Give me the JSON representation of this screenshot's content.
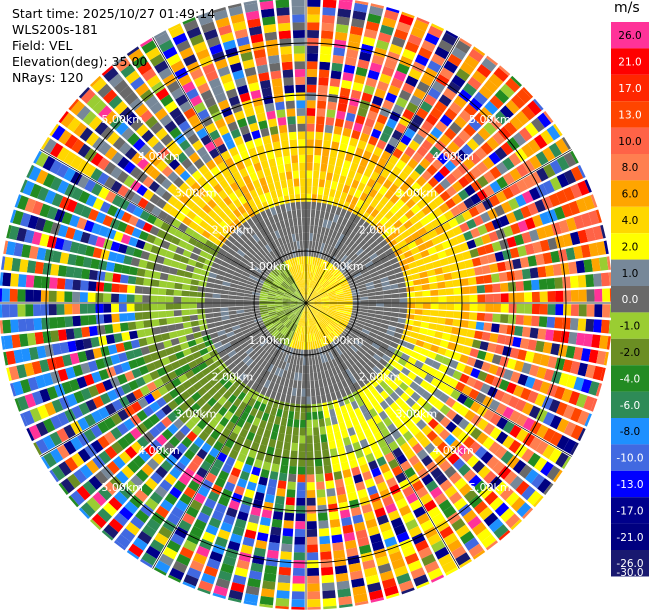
{
  "header": {
    "start_time": "Start time: 2025/10/27 01:49:14",
    "instrument": "WLS200s-181",
    "field": "Field: VEL",
    "elevation": "Elevation(deg): 35.00",
    "nrays": "NRays: 120"
  },
  "chart_data": {
    "type": "heatmap",
    "projection": "polar-ppi",
    "field": "VEL",
    "unit": "m/s",
    "nrays": 120,
    "max_range_km": 5.9,
    "range_rings": [
      {
        "range_km": 1,
        "label": "1.00km"
      },
      {
        "range_km": 2,
        "label": "2.00km"
      },
      {
        "range_km": 3,
        "label": "3.00km"
      },
      {
        "range_km": 4,
        "label": "4.00km"
      },
      {
        "range_km": 5,
        "label": "5.00km"
      }
    ],
    "colorbar": {
      "ticks": [
        {
          "value": 26.0,
          "label": "26.0",
          "color": "#ff3399"
        },
        {
          "value": 21.0,
          "label": "21.0",
          "color": "#ff0000"
        },
        {
          "value": 17.0,
          "label": "17.0",
          "color": "#ff2600"
        },
        {
          "value": 13.0,
          "label": "13.0",
          "color": "#ff4500"
        },
        {
          "value": 10.0,
          "label": "10.0",
          "color": "#ff6347"
        },
        {
          "value": 8.0,
          "label": "8.0",
          "color": "#ff7f50"
        },
        {
          "value": 6.0,
          "label": "6.0",
          "color": "#ffa500"
        },
        {
          "value": 4.0,
          "label": "4.0",
          "color": "#ffd700"
        },
        {
          "value": 2.0,
          "label": "2.0",
          "color": "#ffff00"
        },
        {
          "value": 1.0,
          "label": "1.0",
          "color": "#778899"
        },
        {
          "value": 0.0,
          "label": "0.0",
          "color": "#696969"
        },
        {
          "value": -1.0,
          "label": "-1.0",
          "color": "#9acd32"
        },
        {
          "value": -2.0,
          "label": "-2.0",
          "color": "#6b8e23"
        },
        {
          "value": -4.0,
          "label": "-4.0",
          "color": "#228b22"
        },
        {
          "value": -6.0,
          "label": "-6.0",
          "color": "#2e8b57"
        },
        {
          "value": -8.0,
          "label": "-8.0",
          "color": "#1e90ff"
        },
        {
          "value": -10.0,
          "label": "-10.0",
          "color": "#4169e1"
        },
        {
          "value": -13.0,
          "label": "-13.0",
          "color": "#0000ff"
        },
        {
          "value": -17.0,
          "label": "-17.0",
          "color": "#00008b"
        },
        {
          "value": -21.0,
          "label": "-21.0",
          "color": "#000080"
        },
        {
          "value": -26.0,
          "label": "-26.0",
          "color": "#191970"
        },
        {
          "value": -30.0,
          "label": "-30.0",
          "color": "#191970"
        }
      ]
    },
    "pattern": {
      "inner_core": "mixed yellow (positive) on east half and olive/green (negative) on west half within ~0.8 km",
      "ring_1_to_2km": "grey near-zero velocities",
      "band_2_to_3km": "yellow/orange positive to the north and east, green/olive negative to the south and west",
      "outer": "noisy multicolored returns beyond ~3.5 km; greens and blues dominate west/southwest, oranges and reds dominate northeast"
    }
  }
}
